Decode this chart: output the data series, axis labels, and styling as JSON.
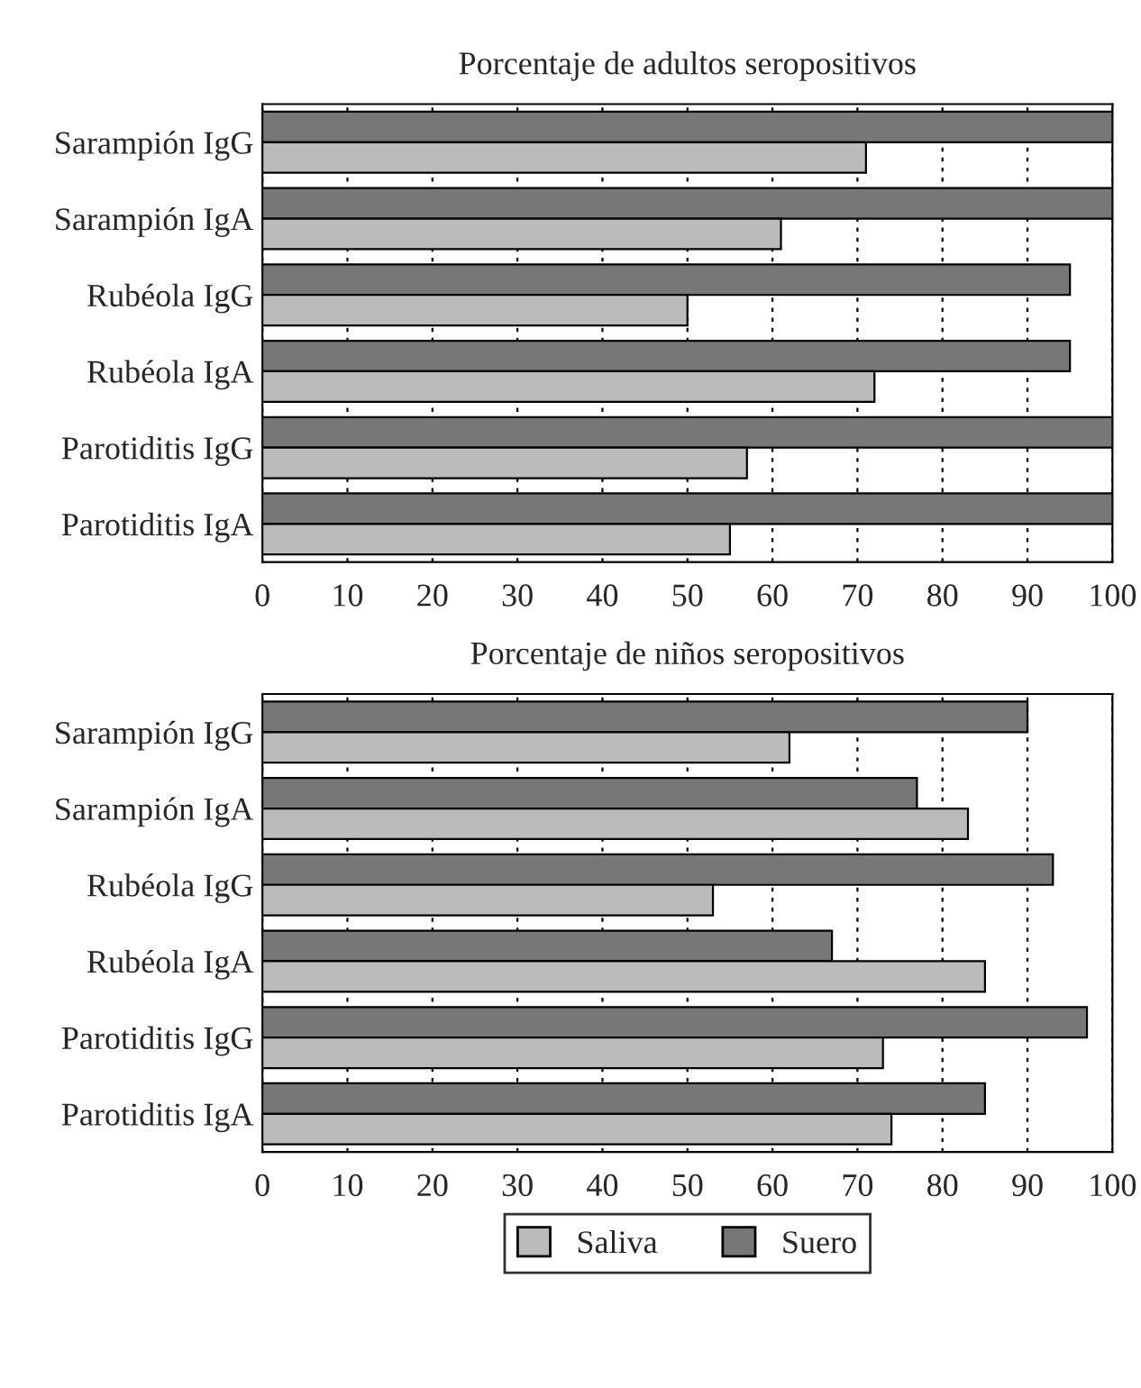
{
  "chart_data": [
    {
      "type": "bar",
      "orientation": "horizontal",
      "title": "Porcentaje de adultos seropositivos",
      "categories": [
        "Sarampión IgG",
        "Sarampión IgA",
        "Rubéola IgG",
        "Rubéola IgA",
        "Parotiditis IgG",
        "Parotiditis IgA"
      ],
      "series": [
        {
          "color": "#777777",
          "values": [
            100,
            100,
            95,
            95,
            100,
            100
          ]
        },
        {
          "color": "#bbbbbb",
          "values": [
            71,
            61,
            50,
            72,
            57,
            55
          ]
        }
      ],
      "xlim": [
        0,
        100
      ],
      "xticks": [
        0,
        10,
        20,
        30,
        40,
        50,
        60,
        70,
        80,
        90,
        100
      ],
      "grid": "x"
    },
    {
      "type": "bar",
      "orientation": "horizontal",
      "title": "Porcentaje de niños seropositivos",
      "categories": [
        "Sarampión IgG",
        "Sarampión IgA",
        "Rubéola IgG",
        "Rubéola IgA",
        "Parotiditis IgG",
        "Parotiditis IgA"
      ],
      "series": [
        {
          "name": "Suero",
          "color": "#777777",
          "values": [
            90,
            77,
            93,
            67,
            97,
            85
          ]
        },
        {
          "name": "Saliva",
          "color": "#bbbbbb",
          "values": [
            62,
            83,
            53,
            85,
            73,
            74
          ]
        }
      ],
      "xlim": [
        0,
        100
      ],
      "xticks": [
        0,
        10,
        20,
        30,
        40,
        50,
        60,
        70,
        80,
        90,
        100
      ],
      "grid": "x",
      "legend": "bottom"
    }
  ]
}
